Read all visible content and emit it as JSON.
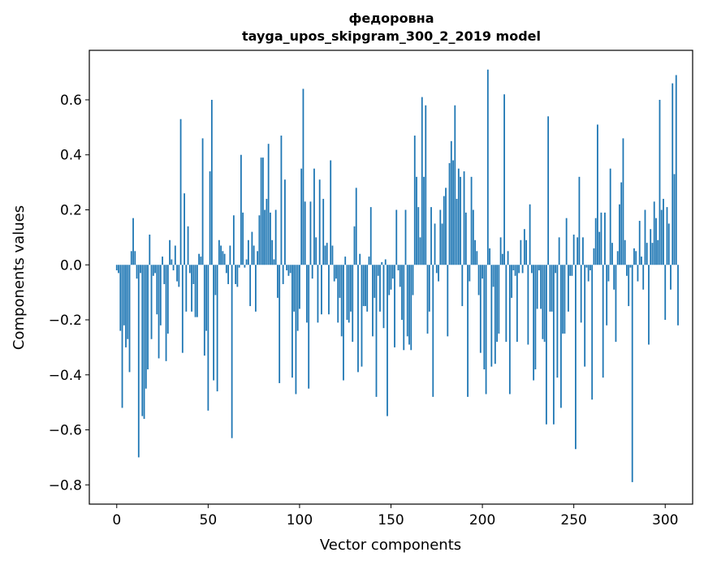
{
  "chart_data": {
    "type": "bar",
    "title_line1": "федоровна",
    "title_line2": "tayga_upos_skipgram_300_2_2019 model",
    "xlabel": "Vector components",
    "ylabel": "Components values",
    "xlim": [
      -15,
      315
    ],
    "ylim": [
      -0.87,
      0.78
    ],
    "xticks": [
      0,
      50,
      100,
      150,
      200,
      250,
      300
    ],
    "yticks": [
      -0.8,
      -0.6,
      -0.4,
      -0.2,
      0.0,
      0.2,
      0.4,
      0.6
    ],
    "ytick_labels": [
      "−0.8",
      "−0.6",
      "−0.4",
      "−0.2",
      "0.0",
      "0.2",
      "0.4",
      "0.6"
    ],
    "bar_color": "#1f77b4",
    "values": [
      -0.02,
      -0.03,
      -0.24,
      -0.52,
      -0.22,
      -0.3,
      -0.27,
      -0.39,
      0.05,
      0.17,
      0.05,
      -0.05,
      -0.7,
      -0.03,
      -0.55,
      -0.56,
      -0.45,
      -0.38,
      0.11,
      -0.27,
      -0.04,
      -0.03,
      -0.18,
      -0.34,
      -0.22,
      0.03,
      -0.07,
      -0.35,
      -0.25,
      0.09,
      0.02,
      -0.02,
      0.07,
      -0.06,
      -0.08,
      0.53,
      -0.32,
      0.26,
      -0.17,
      0.14,
      -0.03,
      -0.17,
      -0.07,
      -0.19,
      -0.19,
      0.04,
      0.03,
      0.46,
      -0.33,
      -0.24,
      -0.53,
      0.34,
      0.6,
      -0.42,
      -0.11,
      -0.46,
      0.09,
      0.07,
      0.05,
      0.04,
      -0.03,
      -0.07,
      0.07,
      -0.63,
      0.18,
      -0.07,
      -0.08,
      -0.01,
      0.4,
      0.19,
      -0.01,
      0.02,
      0.09,
      -0.15,
      0.12,
      0.07,
      -0.17,
      0.05,
      0.18,
      0.39,
      0.39,
      0.2,
      0.24,
      0.44,
      0.19,
      0.09,
      0.02,
      0.2,
      -0.12,
      -0.43,
      0.47,
      -0.07,
      0.31,
      -0.02,
      -0.04,
      -0.03,
      -0.41,
      -0.17,
      -0.47,
      -0.24,
      -0.16,
      0.35,
      0.64,
      0.23,
      -0.21,
      -0.45,
      0.23,
      -0.05,
      0.35,
      0.1,
      -0.21,
      0.31,
      -0.18,
      0.24,
      0.07,
      0.08,
      -0.18,
      0.38,
      0.07,
      -0.06,
      -0.05,
      -0.21,
      -0.12,
      -0.26,
      -0.42,
      0.03,
      -0.2,
      -0.21,
      -0.17,
      -0.28,
      0.14,
      0.28,
      -0.39,
      0.04,
      -0.37,
      -0.15,
      -0.15,
      -0.17,
      0.03,
      0.21,
      -0.26,
      -0.12,
      -0.48,
      -0.04,
      -0.17,
      0.01,
      -0.23,
      0.02,
      -0.55,
      -0.11,
      -0.09,
      -0.05,
      -0.3,
      0.2,
      -0.02,
      -0.08,
      -0.2,
      -0.31,
      0.2,
      -0.26,
      -0.29,
      -0.31,
      -0.11,
      0.47,
      0.32,
      0.21,
      0.1,
      0.61,
      0.32,
      0.58,
      -0.25,
      -0.17,
      0.21,
      -0.48,
      0.15,
      -0.03,
      -0.06,
      0.2,
      0.15,
      0.25,
      0.28,
      -0.26,
      0.37,
      0.45,
      0.38,
      0.58,
      0.24,
      0.35,
      0.32,
      -0.15,
      0.34,
      0.19,
      -0.48,
      -0.06,
      0.32,
      0.2,
      0.09,
      0.05,
      -0.11,
      -0.32,
      -0.05,
      -0.38,
      -0.47,
      0.71,
      0.06,
      -0.37,
      -0.08,
      -0.36,
      -0.28,
      -0.25,
      0.1,
      0.04,
      0.62,
      -0.28,
      0.05,
      -0.47,
      -0.12,
      -0.02,
      -0.04,
      -0.28,
      -0.03,
      0.09,
      -0.03,
      0.13,
      0.09,
      -0.29,
      0.22,
      -0.03,
      -0.42,
      -0.38,
      -0.16,
      -0.02,
      -0.16,
      -0.27,
      -0.28,
      -0.58,
      0.54,
      -0.17,
      -0.17,
      -0.58,
      -0.03,
      -0.41,
      0.1,
      -0.52,
      -0.25,
      -0.25,
      0.17,
      -0.17,
      -0.04,
      -0.04,
      0.11,
      -0.67,
      0.1,
      0.32,
      -0.21,
      0.1,
      -0.37,
      -0.01,
      -0.06,
      -0.02,
      -0.49,
      0.06,
      0.17,
      0.51,
      0.12,
      0.19,
      -0.41,
      0.19,
      -0.22,
      -0.06,
      0.35,
      0.08,
      -0.09,
      -0.28,
      0.05,
      0.22,
      0.3,
      0.46,
      0.09,
      -0.04,
      -0.15,
      -0.01,
      -0.79,
      0.06,
      0.05,
      -0.06,
      0.16,
      0.03,
      -0.09,
      0.2,
      0.08,
      -0.29,
      0.13,
      0.08,
      0.23,
      0.17,
      0.09,
      0.6,
      0.2,
      0.24,
      -0.2,
      0.21,
      0.15,
      -0.09,
      0.66,
      0.33,
      0.69,
      -0.22
    ]
  }
}
